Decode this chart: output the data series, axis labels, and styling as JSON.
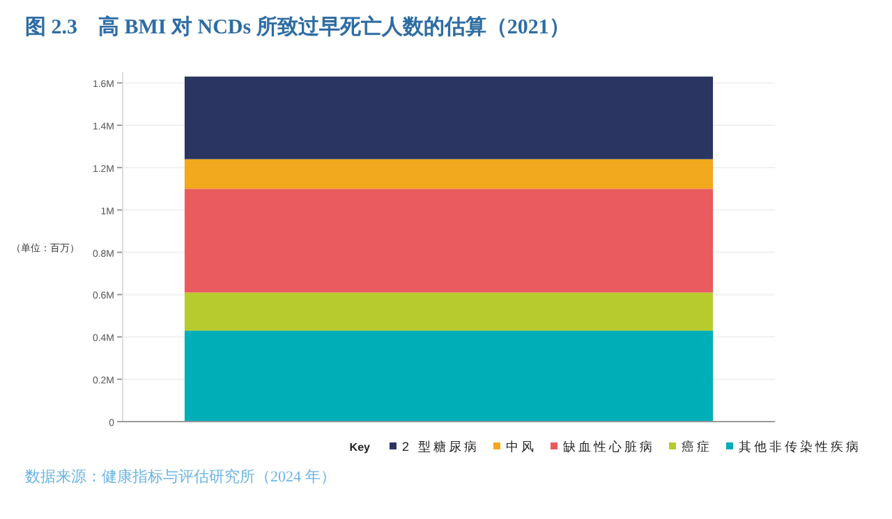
{
  "chart_data": {
    "type": "bar",
    "stacked": true,
    "title": "图 2.3　高 BMI 对 NCDs 所致过早死亡人数的估算（2021）",
    "ylabel": "（单位：百万）",
    "legend_title": "Key",
    "categories": [
      null
    ],
    "series": [
      {
        "name": "其他非传染性疾病",
        "color": "#00aeb8",
        "values": [
          0.43
        ]
      },
      {
        "name": "癌症",
        "color": "#b8cb2e",
        "values": [
          0.18
        ]
      },
      {
        "name": "缺血性心脏病",
        "color": "#e95b5e",
        "values": [
          0.49
        ]
      },
      {
        "name": "中风",
        "color": "#f2a91e",
        "values": [
          0.14
        ]
      },
      {
        "name": "2 型糖尿病",
        "color": "#2b3561",
        "values": [
          0.39
        ]
      }
    ],
    "ylim": [
      0,
      1.65
    ],
    "yticks": [
      0,
      {
        "value": 0.2,
        "label": "0.2M"
      },
      {
        "value": 0.4,
        "label": "0.4M"
      },
      {
        "value": 0.6,
        "label": "0.6M"
      },
      {
        "value": 0.8,
        "label": "0.8M"
      },
      {
        "value": 1,
        "label": "1M"
      },
      {
        "value": 1.2,
        "label": "1.2M"
      },
      {
        "value": 1.4,
        "label": "1.4M"
      },
      {
        "value": 1.6,
        "label": "1.6M"
      }
    ],
    "grid": "y",
    "legend": "bottom right",
    "annotations": [
      "数据来源：健康指标与评估研究所（2024 年）"
    ]
  }
}
